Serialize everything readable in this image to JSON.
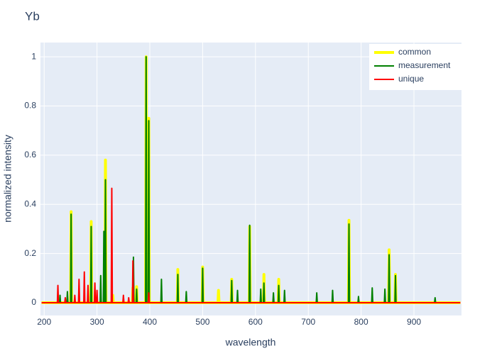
{
  "chart_data": {
    "type": "line",
    "title": "Yb",
    "x_label": "wavelength",
    "y_label": "normalized intensity",
    "xlim": [
      193,
      990
    ],
    "ylim": [
      -0.052,
      1.058
    ],
    "xticks": [
      200,
      300,
      400,
      500,
      600,
      700,
      800,
      900
    ],
    "yticks": [
      0,
      0.2,
      0.4,
      0.6,
      0.8,
      1
    ],
    "grid": true,
    "legend": "top-right",
    "series": [
      {
        "name": "common",
        "color": "#ffff00",
        "width": 4,
        "x": [
          195,
          250,
          251,
          252,
          288,
          289,
          290,
          315,
          316,
          317,
          329,
          330,
          331,
          367,
          368,
          369,
          374,
          375,
          376,
          392,
          393,
          394,
          397,
          398,
          399,
          452,
          453,
          454,
          499,
          500,
          501,
          529,
          530,
          531,
          554,
          555,
          556,
          588,
          589,
          590,
          615,
          616,
          617,
          643,
          644,
          645,
          776,
          777,
          778,
          852,
          853,
          854,
          864,
          865,
          866,
          988
        ],
        "values": [
          0,
          0,
          0.37,
          0,
          0,
          0.33,
          0,
          0,
          0.58,
          0,
          0,
          0.03,
          0,
          0,
          0.06,
          0,
          0,
          0.065,
          0,
          0,
          1.0,
          0,
          0,
          0.75,
          0,
          0,
          0.135,
          0,
          0,
          0.145,
          0,
          0,
          0.05,
          0,
          0,
          0.095,
          0,
          0,
          0.31,
          0,
          0,
          0.115,
          0,
          0,
          0.095,
          0,
          0,
          0.335,
          0,
          0,
          0.215,
          0,
          0,
          0.115,
          0,
          0
        ]
      },
      {
        "name": "measurement",
        "color": "#008000",
        "width": 2,
        "x": [
          195,
          229,
          230,
          231,
          243,
          244,
          245,
          250,
          251,
          252,
          288,
          289,
          290,
          306,
          307,
          308,
          312,
          313,
          314,
          315,
          316,
          317,
          368,
          369,
          370,
          374,
          375,
          376,
          392,
          393,
          394,
          397,
          398,
          399,
          421,
          422,
          423,
          452,
          453,
          454,
          468,
          469,
          470,
          499,
          500,
          501,
          554,
          555,
          556,
          565,
          566,
          567,
          588,
          589,
          590,
          609,
          610,
          611,
          615,
          616,
          617,
          633,
          634,
          635,
          643,
          644,
          645,
          654,
          655,
          656,
          715,
          716,
          717,
          745,
          746,
          747,
          776,
          777,
          778,
          794,
          795,
          796,
          820,
          821,
          822,
          844,
          845,
          846,
          852,
          853,
          854,
          864,
          865,
          866,
          939,
          940,
          941,
          988
        ],
        "values": [
          0,
          0,
          0.03,
          0,
          0,
          0.045,
          0,
          0,
          0.36,
          0,
          0,
          0.31,
          0,
          0,
          0.11,
          0,
          0,
          0.29,
          0,
          0,
          0.5,
          0,
          0,
          0.185,
          0,
          0,
          0.055,
          0,
          0,
          1.0,
          0,
          0,
          0.74,
          0,
          0,
          0.095,
          0,
          0,
          0.115,
          0,
          0,
          0.045,
          0,
          0,
          0.14,
          0,
          0,
          0.09,
          0,
          0,
          0.05,
          0,
          0,
          0.315,
          0,
          0,
          0.055,
          0,
          0,
          0.08,
          0,
          0,
          0.04,
          0,
          0,
          0.07,
          0,
          0,
          0.05,
          0,
          0,
          0.04,
          0,
          0,
          0.05,
          0,
          0,
          0.32,
          0,
          0,
          0.025,
          0,
          0,
          0.06,
          0,
          0,
          0.055,
          0,
          0,
          0.195,
          0,
          0,
          0.11,
          0,
          0,
          0.02,
          0,
          0
        ]
      },
      {
        "name": "unique",
        "color": "#ff0000",
        "width": 2,
        "x": [
          195,
          225,
          226,
          227,
          239,
          240,
          241,
          257,
          258,
          259,
          265,
          266,
          267,
          275,
          276,
          277,
          282,
          283,
          284,
          295,
          296,
          297,
          299,
          300,
          301,
          327,
          328,
          329,
          349,
          350,
          351,
          359,
          360,
          361,
          367,
          368,
          369,
          397,
          398,
          399,
          988
        ],
        "values": [
          0,
          0,
          0.07,
          0,
          0,
          0.02,
          0,
          0,
          0.03,
          0,
          0,
          0.095,
          0,
          0,
          0.125,
          0,
          0,
          0.07,
          0,
          0,
          0.08,
          0,
          0,
          0.05,
          0,
          0,
          0.465,
          0,
          0,
          0.03,
          0,
          0,
          0.02,
          0,
          0,
          0.17,
          0,
          0,
          0.04,
          0,
          0
        ]
      }
    ]
  }
}
